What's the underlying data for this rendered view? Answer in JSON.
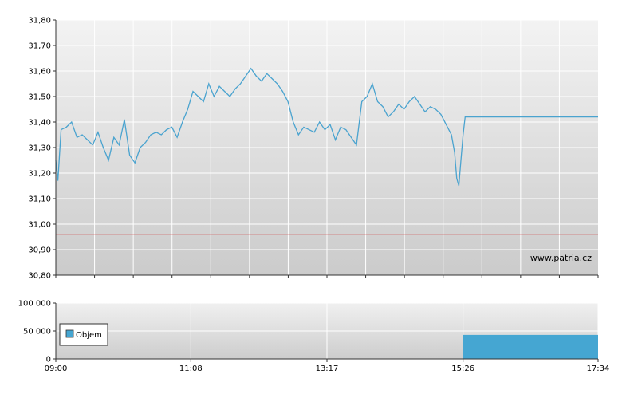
{
  "watermark": "www.patria.cz",
  "legend": {
    "label": "Objem"
  },
  "colors": {
    "line": "#4aa3cf",
    "volume": "#45a6d2",
    "reference": "#d23c3c",
    "grid": "#ffffff",
    "bg_top": "#f2f2f2",
    "bg_bottom": "#cdcdcd"
  },
  "chart_data": [
    {
      "type": "line",
      "x_ticks": [
        "09:00",
        "11:08",
        "13:17",
        "15:26",
        "17:34"
      ],
      "x_range": [
        "09:00",
        "17:34"
      ],
      "y_ticks": [
        "31,80",
        "31,70",
        "31,60",
        "31,50",
        "31,40",
        "31,30",
        "31,20",
        "31,10",
        "31,00",
        "30,90",
        "30,80"
      ],
      "ylim": [
        30.8,
        31.8
      ],
      "reference_line": 30.96,
      "grid": true,
      "series": [
        {
          "x": [
            "09:00",
            "09:02",
            "09:05",
            "09:10",
            "09:15",
            "09:20",
            "09:25",
            "09:30",
            "09:35",
            "09:40",
            "09:45",
            "09:50",
            "09:55",
            "10:00",
            "10:05",
            "10:10",
            "10:15",
            "10:20",
            "10:25",
            "10:30",
            "10:35",
            "10:40",
            "10:45",
            "10:50",
            "10:55",
            "11:00",
            "11:05",
            "11:10",
            "11:15",
            "11:20",
            "11:25",
            "11:30",
            "11:35",
            "11:40",
            "11:45",
            "11:50",
            "11:55",
            "12:00",
            "12:05",
            "12:10",
            "12:15",
            "12:20",
            "12:25",
            "12:30",
            "12:35",
            "12:40",
            "12:45",
            "12:50",
            "12:55",
            "13:00",
            "13:05",
            "13:10",
            "13:15",
            "13:20",
            "13:25",
            "13:30",
            "13:35",
            "13:40",
            "13:45",
            "13:50",
            "13:55",
            "14:00",
            "14:05",
            "14:10",
            "14:15",
            "14:20",
            "14:25",
            "14:30",
            "14:35",
            "14:40",
            "14:45",
            "14:50",
            "14:55",
            "15:00",
            "15:05",
            "15:10",
            "15:15",
            "15:18",
            "15:20",
            "15:22",
            "15:24",
            "15:26",
            "15:28",
            "17:34"
          ],
          "values": [
            31.25,
            31.17,
            31.37,
            31.38,
            31.4,
            31.34,
            31.35,
            31.33,
            31.31,
            31.36,
            31.3,
            31.25,
            31.34,
            31.31,
            31.41,
            31.27,
            31.24,
            31.3,
            31.32,
            31.35,
            31.36,
            31.35,
            31.37,
            31.38,
            31.34,
            31.4,
            31.45,
            31.52,
            31.5,
            31.48,
            31.55,
            31.5,
            31.54,
            31.52,
            31.5,
            31.53,
            31.55,
            31.58,
            31.61,
            31.58,
            31.56,
            31.59,
            31.57,
            31.55,
            31.52,
            31.48,
            31.4,
            31.35,
            31.38,
            31.37,
            31.36,
            31.4,
            31.37,
            31.39,
            31.33,
            31.38,
            31.37,
            31.34,
            31.31,
            31.48,
            31.5,
            31.55,
            31.48,
            31.46,
            31.42,
            31.44,
            31.47,
            31.45,
            31.48,
            31.5,
            31.47,
            31.44,
            31.46,
            31.45,
            31.43,
            31.39,
            31.35,
            31.28,
            31.18,
            31.15,
            31.25,
            31.35,
            31.42,
            31.42
          ],
          "color": "#4aa3cf"
        }
      ]
    },
    {
      "type": "bar",
      "x_ticks": [
        "09:00",
        "11:08",
        "13:17",
        "15:26",
        "17:34"
      ],
      "y_ticks": [
        "100 000",
        "50 000",
        "0"
      ],
      "ylim": [
        0,
        100000
      ],
      "series": [
        {
          "name": "Objem",
          "bars": [
            {
              "x_start": "15:26",
              "x_end": "17:34",
              "value": 43000
            }
          ]
        }
      ]
    }
  ]
}
